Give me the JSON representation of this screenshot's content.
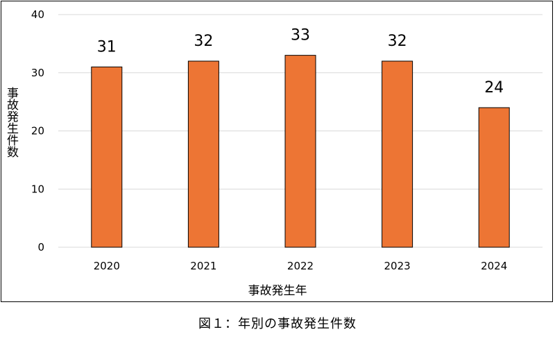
{
  "caption": "図１：年別の事故発生件数",
  "chart_data": {
    "type": "bar",
    "categories": [
      "2020",
      "2021",
      "2022",
      "2023",
      "2024"
    ],
    "values": [
      31,
      32,
      33,
      32,
      24
    ],
    "data_labels": [
      "31",
      "32",
      "33",
      "32",
      "24"
    ],
    "title": "",
    "xlabel": "事故発生年",
    "ylabel": "事故発生件数",
    "ylim": [
      0,
      40
    ],
    "yticks": [
      0,
      10,
      20,
      30,
      40
    ],
    "grid": true,
    "bar_color": "#ED7534",
    "bar_edge_color": "#000000",
    "grid_color": "#D9D9D9"
  }
}
